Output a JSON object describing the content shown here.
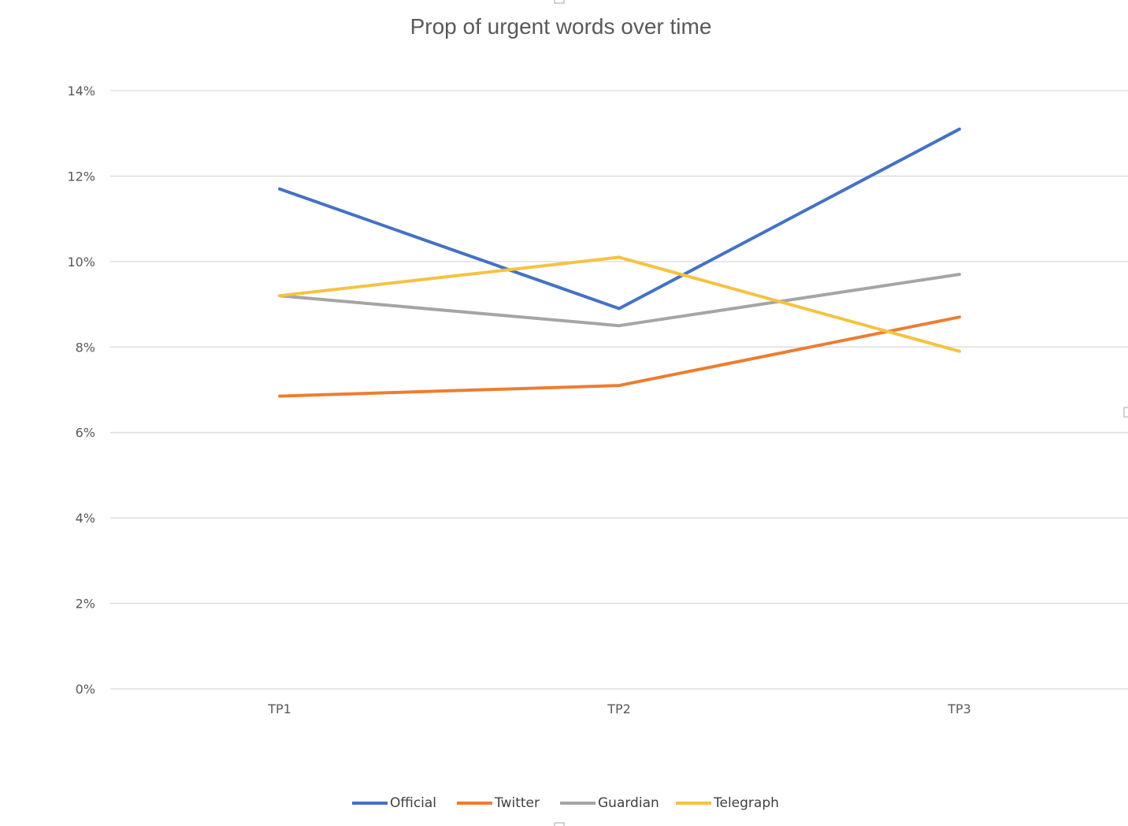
{
  "chart_data": {
    "type": "line",
    "title": "Prop of urgent words over time",
    "xlabel": "",
    "ylabel": "",
    "categories": [
      "TP1",
      "TP2",
      "TP3"
    ],
    "ylim": [
      0,
      14
    ],
    "ytick_values": [
      0,
      2,
      4,
      6,
      8,
      10,
      12,
      14
    ],
    "ytick_labels": [
      "0%",
      "2%",
      "4%",
      "6%",
      "8%",
      "10%",
      "12%",
      "14%"
    ],
    "grid": true,
    "legend_position": "bottom",
    "series": [
      {
        "name": "Official",
        "color": "#4472c4",
        "values": [
          11.7,
          8.9,
          13.1
        ]
      },
      {
        "name": "Twitter",
        "color": "#ed7d31",
        "values": [
          6.85,
          7.1,
          8.7
        ]
      },
      {
        "name": "Guardian",
        "color": "#a5a5a5",
        "values": [
          9.2,
          8.5,
          9.7
        ]
      },
      {
        "name": "Telegraph",
        "color": "#f5c242",
        "values": [
          9.2,
          10.1,
          7.9
        ]
      }
    ]
  }
}
